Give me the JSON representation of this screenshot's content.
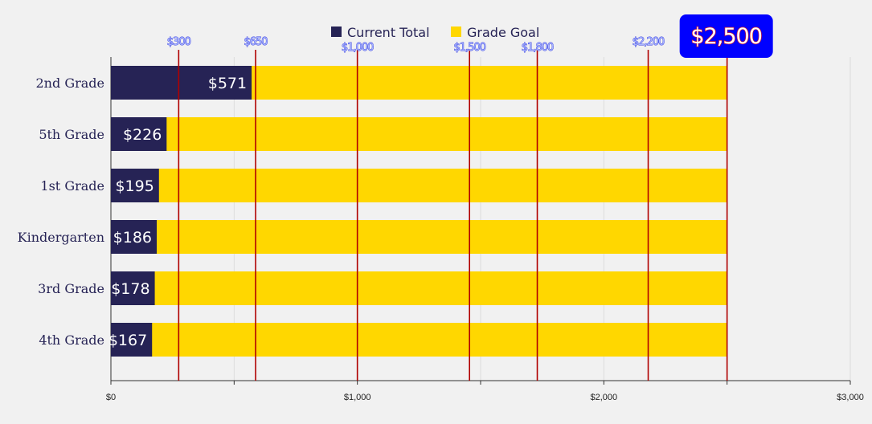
{
  "chart_data": {
    "type": "bar",
    "orientation": "horizontal",
    "stacking": "overlay",
    "categories": [
      "2nd Grade",
      "5th Grade",
      "1st Grade",
      "Kindergarten",
      "3rd Grade",
      "4th Grade"
    ],
    "series": [
      {
        "name": "Current Total",
        "values": [
          571,
          226,
          195,
          186,
          178,
          167
        ],
        "color": "#262355",
        "labels": [
          "$571",
          "$226",
          "$195",
          "$186",
          "$178",
          "$167"
        ]
      },
      {
        "name": "Grade Goal",
        "values": [
          2500,
          2500,
          2500,
          2500,
          2500,
          2500
        ],
        "color": "#ffd700"
      }
    ],
    "x_axis": {
      "range": [
        0,
        3000
      ],
      "ticks": [
        0,
        1000,
        2000,
        3000
      ],
      "tick_labels": [
        "$0",
        "$1,000",
        "$2,000",
        "$3,000"
      ],
      "minor_ticks": [
        500,
        1500,
        2500
      ]
    },
    "milestones": [
      {
        "value": 275,
        "label": "$300"
      },
      {
        "value": 587,
        "label": "$650"
      },
      {
        "value": 1000,
        "label": "$1,000"
      },
      {
        "value": 1455,
        "label": "$1,500"
      },
      {
        "value": 1730,
        "label": "$1,800"
      },
      {
        "value": 2180,
        "label": "$2,200"
      },
      {
        "value": 2500,
        "label": "$2,500"
      }
    ],
    "milestone_color": "#b00000",
    "goal_badge": {
      "label": "$2,500",
      "bg": "#0000ff",
      "text_color": "#ffffff",
      "outline": "#d11a2a"
    },
    "legend": {
      "placement": "top-center"
    },
    "grid": true,
    "title": "",
    "xlabel": "",
    "ylabel": ""
  }
}
